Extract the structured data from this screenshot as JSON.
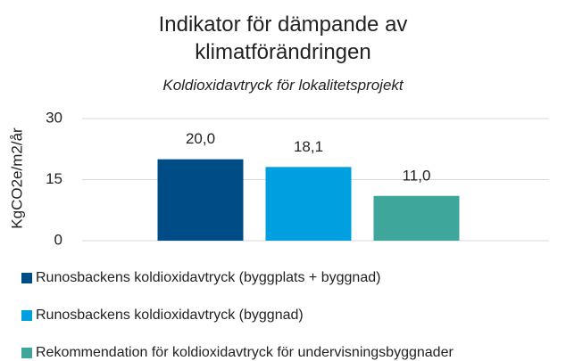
{
  "chart_data": {
    "type": "bar",
    "title": "Indikator för dämpande av klimatförändringen",
    "subtitle": "Koldioxidavtryck för lokalitetsprojekt",
    "y_label": "KgCO2e/m2/år",
    "categories": [
      null
    ],
    "series": [
      {
        "name": "Runosbackens koldioxidavtryck (byggplats + byggnad)",
        "color": "#004c87",
        "values": [
          20.0
        ],
        "value_labels": [
          "20,0"
        ]
      },
      {
        "name": "Runosbackens koldioxidavtryck (byggnad)",
        "color": "#009fdf",
        "values": [
          18.1
        ],
        "value_labels": [
          "18,1"
        ]
      },
      {
        "name": "Rekommendation för koldioxidavtryck för undervisningsbyggnader",
        "color": "#3fa69c",
        "values": [
          11.0
        ],
        "value_labels": [
          "11,0"
        ]
      }
    ],
    "ylim": [
      0,
      30
    ],
    "yticks": [
      0,
      15,
      30
    ],
    "grid": true,
    "legend": "bottom"
  }
}
